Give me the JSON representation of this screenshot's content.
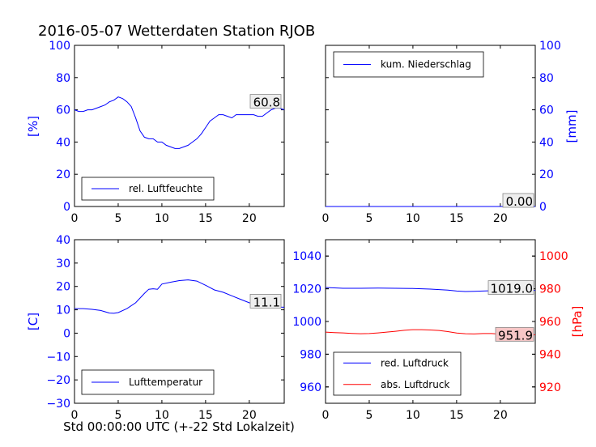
{
  "title": "2016-05-07 Wetterdaten Station RJOB",
  "xlabel": "Std 00:00:00 UTC (+-22 Std Lokalzeit)",
  "colors": {
    "blue": "#0000ff",
    "red": "#ff0000",
    "annot_bg_red": "#f7c6c6",
    "annot_bg": "#eeeeee"
  },
  "chart_data": [
    {
      "type": "line",
      "panel": "top-left",
      "ylabel": "[%]",
      "xlim": [
        0,
        24
      ],
      "ylim": [
        0,
        100
      ],
      "xticks": [
        0,
        5,
        10,
        15,
        20
      ],
      "yticks": [
        0,
        20,
        40,
        60,
        80,
        100
      ],
      "legend": {
        "placement": "lower-left",
        "entries": [
          "rel. Luftfeuchte"
        ]
      },
      "annotation": "60.8",
      "series": [
        {
          "name": "rel. Luftfeuchte",
          "color": "#0000ff",
          "x": [
            0,
            0.5,
            1,
            1.5,
            2,
            2.5,
            3,
            3.5,
            4,
            4.5,
            5,
            5.5,
            6,
            6.5,
            7,
            7.5,
            8,
            8.5,
            9,
            9.5,
            10,
            10.5,
            11,
            11.5,
            12,
            12.5,
            13,
            13.5,
            14,
            14.5,
            15,
            15.5,
            16,
            16.5,
            17,
            17.5,
            18,
            18.5,
            19,
            19.5,
            20,
            20.5,
            21,
            21.5,
            22,
            22.5,
            23,
            23.5,
            24
          ],
          "y": [
            60,
            59,
            59,
            60,
            60,
            61,
            62,
            63,
            65,
            66,
            68,
            67,
            65,
            62,
            55,
            47,
            43,
            42,
            42,
            40,
            40,
            38,
            37,
            36,
            36,
            37,
            38,
            40,
            42,
            45,
            49,
            53,
            55,
            57,
            57,
            56,
            55,
            57,
            57,
            57,
            57,
            57,
            56,
            56,
            58,
            60,
            61,
            61,
            60
          ]
        }
      ]
    },
    {
      "type": "line",
      "panel": "top-right",
      "ylabel": "[mm]",
      "xlim": [
        0,
        24
      ],
      "ylim": [
        0,
        100
      ],
      "xticks": [
        0,
        5,
        10,
        15,
        20
      ],
      "yticks": [
        0,
        20,
        40,
        60,
        80,
        100
      ],
      "legend": {
        "placement": "top-left",
        "entries": [
          "kum. Niederschlag"
        ]
      },
      "annotation": "0.00",
      "series": [
        {
          "name": "kum. Niederschlag",
          "color": "#0000ff",
          "x": [
            0,
            24
          ],
          "y": [
            0,
            0
          ]
        }
      ]
    },
    {
      "type": "line",
      "panel": "bottom-left",
      "ylabel": "[C]",
      "xlim": [
        0,
        24
      ],
      "ylim": [
        -30,
        40
      ],
      "xticks": [
        0,
        5,
        10,
        15,
        20
      ],
      "yticks": [
        -30,
        -20,
        -10,
        0,
        10,
        20,
        30,
        40
      ],
      "legend": {
        "placement": "lower-left",
        "entries": [
          "Lufttemperatur"
        ]
      },
      "annotation": "11.1",
      "series": [
        {
          "name": "Lufttemperatur",
          "color": "#0000ff",
          "x": [
            0,
            1,
            2,
            3,
            4,
            4.5,
            5,
            6,
            7,
            8,
            8.5,
            9,
            9.5,
            10,
            11,
            12,
            13,
            14,
            15,
            16,
            17,
            18,
            19,
            20,
            21,
            22,
            23,
            24
          ],
          "y": [
            10.5,
            10.5,
            10.2,
            9.7,
            8.6,
            8.5,
            8.8,
            10.5,
            13,
            17,
            18.8,
            19,
            18.8,
            21,
            21.8,
            22.5,
            22.8,
            22.3,
            20.5,
            18.5,
            17.5,
            16,
            14.5,
            13,
            12.2,
            11.5,
            11.2,
            11.1
          ]
        }
      ]
    },
    {
      "type": "line",
      "panel": "bottom-right",
      "ylabel": "[hPa]",
      "xlim": [
        0,
        24
      ],
      "ylim_left": [
        950,
        1050
      ],
      "ylim_right": [
        910,
        1010
      ],
      "xticks": [
        0,
        5,
        10,
        15,
        20
      ],
      "yticks_left": [
        960,
        980,
        1000,
        1020,
        1040
      ],
      "yticks_right": [
        920,
        940,
        960,
        980,
        1000
      ],
      "legend": {
        "placement": "lower-left",
        "entries": [
          "red. Luftdruck",
          "abs. Luftdruck"
        ]
      },
      "annotations": [
        "1019.0",
        "951.9"
      ],
      "series": [
        {
          "name": "red. Luftdruck",
          "color": "#0000ff",
          "axis": "left",
          "x": [
            0,
            2,
            4,
            6,
            8,
            10,
            12,
            14,
            15,
            16,
            17,
            18,
            19,
            20,
            21,
            22,
            23,
            24
          ],
          "y": [
            1020.8,
            1020.3,
            1020.3,
            1020.4,
            1020.3,
            1020.2,
            1019.8,
            1019.2,
            1018.6,
            1018.3,
            1018.4,
            1018.6,
            1018.8,
            1018.9,
            1019.0,
            1019.0,
            1019.0,
            1019.0
          ]
        },
        {
          "name": "abs. Luftdruck",
          "color": "#ff0000",
          "axis": "right",
          "x": [
            0,
            1,
            2,
            3,
            4,
            5,
            6,
            7,
            8,
            9,
            10,
            11,
            12,
            13,
            14,
            15,
            16,
            17,
            18,
            19,
            20,
            21,
            22,
            23,
            24
          ],
          "y": [
            953.5,
            953.2,
            953,
            952.7,
            952.5,
            952.6,
            953,
            953.5,
            954,
            954.6,
            955,
            955,
            954.8,
            954.5,
            953.8,
            952.9,
            952.5,
            952.4,
            952.6,
            952.6,
            952.3,
            952.2,
            951.9,
            951.9,
            951.9
          ]
        }
      ]
    }
  ]
}
